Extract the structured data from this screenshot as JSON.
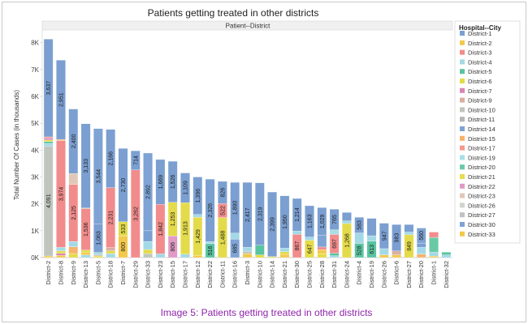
{
  "caption": "Image 5: Patients getting treated in other districts",
  "chart_data": {
    "type": "bar",
    "stacked": true,
    "title": "Patients getting treated in other districts",
    "column_header": "Patient--District",
    "ylabel": "Total Number Of Cases (in thousands)",
    "xlabel": "",
    "ylim": [
      0,
      8200
    ],
    "yticks": [
      0,
      1000,
      2000,
      3000,
      4000,
      5000,
      6000,
      7000,
      8000
    ],
    "ytick_labels": [
      "0K",
      "1K",
      "2K",
      "3K",
      "4K",
      "5K",
      "6K",
      "7K",
      "8K"
    ],
    "grid": false,
    "legend_position": "right",
    "legend_title": "Hospital--City",
    "legend": [
      {
        "name": "District-1",
        "color": "#7b9fd1"
      },
      {
        "name": "District-2",
        "color": "#f2c94c"
      },
      {
        "name": "District-3",
        "color": "#f28c8c"
      },
      {
        "name": "District-4",
        "color": "#a3d9e6"
      },
      {
        "name": "District-5",
        "color": "#59c4a0"
      },
      {
        "name": "District-6",
        "color": "#e4db4a"
      },
      {
        "name": "District-7",
        "color": "#d985b5"
      },
      {
        "name": "District-9",
        "color": "#d9b0a0"
      },
      {
        "name": "District-10",
        "color": "#c0c6bd"
      },
      {
        "name": "District-11",
        "color": "#b5b5b5"
      },
      {
        "name": "District-14",
        "color": "#7ea3d4"
      },
      {
        "name": "District-15",
        "color": "#f7b36b"
      },
      {
        "name": "District-17",
        "color": "#f59a8c"
      },
      {
        "name": "District-19",
        "color": "#a8dfe6"
      },
      {
        "name": "District-20",
        "color": "#69c9a6"
      },
      {
        "name": "District-21",
        "color": "#e6dd50"
      },
      {
        "name": "District-22",
        "color": "#e09ac5"
      },
      {
        "name": "District-23",
        "color": "#e0c8b8"
      },
      {
        "name": "District-26",
        "color": "#cfd4cc"
      },
      {
        "name": "District-27",
        "color": "#c2c2c2"
      },
      {
        "name": "District-30",
        "color": "#7ea3d4"
      },
      {
        "name": "District-33",
        "color": "#f2c94c"
      }
    ],
    "categories": [
      {
        "name": "District-2",
        "total": 8130,
        "segments": [
          {
            "color": "#f2c94c",
            "value": 60
          },
          {
            "color": "#c0c6bd",
            "value": 4091,
            "label": "4,091"
          },
          {
            "color": "#a3d9e6",
            "value": 100
          },
          {
            "color": "#59c4a0",
            "value": 70
          },
          {
            "color": "#e4db4a",
            "value": 60
          },
          {
            "color": "#d985b5",
            "value": 62
          },
          {
            "color": "#f28c8c",
            "value": 50
          },
          {
            "color": "#7b9fd1",
            "value": 3637,
            "label": "3,637"
          }
        ]
      },
      {
        "name": "District-8",
        "total": 7350,
        "segments": [
          {
            "color": "#f2c94c",
            "value": 80
          },
          {
            "color": "#d985b5",
            "value": 80
          },
          {
            "color": "#e4db4a",
            "value": 90
          },
          {
            "color": "#a3d9e6",
            "value": 130
          },
          {
            "color": "#f28c8c",
            "value": 3974,
            "label": "3,974"
          },
          {
            "color": "#f7b36b",
            "value": 45
          },
          {
            "color": "#7b9fd1",
            "value": 2951,
            "label": "2,951"
          }
        ]
      },
      {
        "name": "District-9",
        "total": 5530,
        "segments": [
          {
            "color": "#e4db4a",
            "value": 150
          },
          {
            "color": "#f7b36b",
            "value": 250
          },
          {
            "color": "#a3d9e6",
            "value": 200
          },
          {
            "color": "#f28c8c",
            "value": 2125,
            "label": "2,125"
          },
          {
            "color": "#e0c8b8",
            "value": 405
          },
          {
            "color": "#7b9fd1",
            "value": 2400,
            "label": "2,400"
          }
        ]
      },
      {
        "name": "District-13",
        "total": 4980,
        "segments": [
          {
            "color": "#a3d9e6",
            "value": 100
          },
          {
            "color": "#f2c94c",
            "value": 90
          },
          {
            "color": "#e4db4a",
            "value": 90
          },
          {
            "color": "#f28c8c",
            "value": 1536,
            "label": "1,536"
          },
          {
            "color": "#d9b0a0",
            "value": 31
          },
          {
            "color": "#7b9fd1",
            "value": 3133,
            "label": "3,133"
          }
        ]
      },
      {
        "name": "District-5",
        "total": 4800,
        "segments": [
          {
            "color": "#e4db4a",
            "value": 60
          },
          {
            "color": "#c0c6bd",
            "value": 60
          },
          {
            "color": "#a3d9e6",
            "value": 73
          },
          {
            "color": "#7b9fd1",
            "value": 1063,
            "label": "1,063"
          },
          {
            "color": "#f2c94c",
            "value": 0
          },
          {
            "color": "#7ea3d4",
            "value": 3544,
            "label": "3,544"
          }
        ]
      },
      {
        "name": "District-18",
        "total": 4770,
        "segments": [
          {
            "color": "#a3d9e6",
            "value": 150
          },
          {
            "color": "#e4db4a",
            "value": 100
          },
          {
            "color": "#d9b0a0",
            "value": 123
          },
          {
            "color": "#f28c8c",
            "value": 2231,
            "label": "2,231"
          },
          {
            "color": "#7b9fd1",
            "value": 2166,
            "label": "2,166"
          }
        ]
      },
      {
        "name": "District-7",
        "total": 4063,
        "segments": [
          {
            "color": "#f2c94c",
            "value": 800,
            "label": "800"
          },
          {
            "color": "#e4db4a",
            "value": 533,
            "label": "533"
          },
          {
            "color": "#7b9fd1",
            "value": 2730,
            "label": "2,730"
          }
        ]
      },
      {
        "name": "District-29",
        "total": 3976,
        "segments": [
          {
            "color": "#f28c8c",
            "value": 3262,
            "label": "3,262"
          },
          {
            "color": "#7b9fd1",
            "value": 714,
            "label": "714"
          }
        ]
      },
      {
        "name": "District-33",
        "total": 3890,
        "segments": [
          {
            "color": "#c0c6bd",
            "value": 150
          },
          {
            "color": "#e4db4a",
            "value": 150
          },
          {
            "color": "#a3d9e6",
            "value": 300
          },
          {
            "color": "#7b9fd1",
            "value": 398
          },
          {
            "color": "#7ea3d4",
            "value": 2892,
            "label": "2,892"
          }
        ]
      },
      {
        "name": "District-23",
        "total": 3650,
        "segments": [
          {
            "color": "#a3d9e6",
            "value": 139
          },
          {
            "color": "#f28c8c",
            "value": 1842,
            "label": "1,842"
          },
          {
            "color": "#7b9fd1",
            "value": 1669,
            "label": "1,669"
          }
        ]
      },
      {
        "name": "District-15",
        "total": 3585,
        "segments": [
          {
            "color": "#e09ac5",
            "value": 806,
            "label": "806"
          },
          {
            "color": "#e4db4a",
            "value": 1253,
            "label": "1,253"
          },
          {
            "color": "#7b9fd1",
            "value": 1526,
            "label": "1,526"
          }
        ]
      },
      {
        "name": "District-17",
        "total": 3150,
        "segments": [
          {
            "color": "#a3d9e6",
            "value": 128
          },
          {
            "color": "#e4db4a",
            "value": 1913,
            "label": "1,913"
          },
          {
            "color": "#7b9fd1",
            "value": 1109,
            "label": "1,109"
          }
        ]
      },
      {
        "name": "District-12",
        "total": 3000,
        "segments": [
          {
            "color": "#f2c94c",
            "value": 75
          },
          {
            "color": "#e4db4a",
            "value": 1429,
            "label": "1,429"
          },
          {
            "color": "#a3d9e6",
            "value": 100
          },
          {
            "color": "#7b9fd1",
            "value": 1396,
            "label": "1,396"
          }
        ]
      },
      {
        "name": "District-22",
        "total": 2920,
        "segments": [
          {
            "color": "#59c4a0",
            "value": 516,
            "label": "516"
          },
          {
            "color": "#a3d9e6",
            "value": 78
          },
          {
            "color": "#7b9fd1",
            "value": 2326,
            "label": "2,326"
          }
        ]
      },
      {
        "name": "District-11",
        "total": 2836,
        "segments": [
          {
            "color": "#e4db4a",
            "value": 1488,
            "label": "1,488"
          },
          {
            "color": "#f28c8c",
            "value": 522,
            "label": "522"
          },
          {
            "color": "#7b9fd1",
            "value": 826,
            "label": "826"
          }
        ]
      },
      {
        "name": "District-16",
        "total": 2800,
        "segments": [
          {
            "color": "#7ea3d4",
            "value": 685,
            "label": "685"
          },
          {
            "color": "#a3d9e6",
            "value": 225
          },
          {
            "color": "#7b9fd1",
            "value": 1890,
            "label": "1,890"
          }
        ]
      },
      {
        "name": "District-3",
        "total": 2800,
        "segments": [
          {
            "color": "#f2c94c",
            "value": 140
          },
          {
            "color": "#c0c6bd",
            "value": 100
          },
          {
            "color": "#a3d9e6",
            "value": 143
          },
          {
            "color": "#7b9fd1",
            "value": 2417,
            "label": "2,417"
          }
        ]
      },
      {
        "name": "District-10",
        "total": 2780,
        "segments": [
          {
            "color": "#e4db4a",
            "value": 100
          },
          {
            "color": "#59c4a0",
            "value": 361
          },
          {
            "color": "#7b9fd1",
            "value": 2319,
            "label": "2,319"
          }
        ]
      },
      {
        "name": "District-14",
        "total": 2440,
        "segments": [
          {
            "color": "#e4db4a",
            "value": 41
          },
          {
            "color": "#7b9fd1",
            "value": 2399,
            "label": "2,399"
          }
        ]
      },
      {
        "name": "District-21",
        "total": 2300,
        "segments": [
          {
            "color": "#f2c94c",
            "value": 120
          },
          {
            "color": "#e4db4a",
            "value": 100
          },
          {
            "color": "#a3d9e6",
            "value": 130
          },
          {
            "color": "#7b9fd1",
            "value": 1950,
            "label": "1,950"
          }
        ]
      },
      {
        "name": "District-30",
        "total": 2200,
        "segments": [
          {
            "color": "#f28c8c",
            "value": 867,
            "label": "867"
          },
          {
            "color": "#a3d9e6",
            "value": 119
          },
          {
            "color": "#7b9fd1",
            "value": 1214,
            "label": "1,214"
          }
        ]
      },
      {
        "name": "District-25",
        "total": 1930,
        "segments": [
          {
            "color": "#e4db4a",
            "value": 647,
            "label": "647"
          },
          {
            "color": "#a3d9e6",
            "value": 120
          },
          {
            "color": "#7b9fd1",
            "value": 1163,
            "label": "1,163"
          }
        ]
      },
      {
        "name": "District-28",
        "total": 1860,
        "segments": [
          {
            "color": "#e4db4a",
            "value": 150
          },
          {
            "color": "#f2c94c",
            "value": 144
          },
          {
            "color": "#f28c8c",
            "value": 100
          },
          {
            "color": "#7ea3d4",
            "value": 437
          },
          {
            "color": "#7b9fd1",
            "value": 1029,
            "label": "1,029"
          }
        ]
      },
      {
        "name": "District-31",
        "total": 1800,
        "segments": [
          {
            "color": "#a3d9e6",
            "value": 70
          },
          {
            "color": "#59c4a0",
            "value": 95
          },
          {
            "color": "#f28c8c",
            "value": 697,
            "label": "697"
          },
          {
            "color": "#a8dfe6",
            "value": 173
          },
          {
            "color": "#7b9fd1",
            "value": 765,
            "label": "765"
          }
        ]
      },
      {
        "name": "District-24",
        "total": 1680,
        "segments": [
          {
            "color": "#e4db4a",
            "value": 1268,
            "label": "1,268"
          },
          {
            "color": "#a3d9e6",
            "value": 100
          },
          {
            "color": "#7b9fd1",
            "value": 312
          }
        ]
      },
      {
        "name": "District-4",
        "total": 1500,
        "segments": [
          {
            "color": "#59c4a0",
            "value": 528,
            "label": "528"
          },
          {
            "color": "#a3d9e6",
            "value": 389
          },
          {
            "color": "#7b9fd1",
            "value": 583,
            "label": "583"
          }
        ]
      },
      {
        "name": "District-19",
        "total": 1460,
        "segments": [
          {
            "color": "#59c4a0",
            "value": 613,
            "label": "613"
          },
          {
            "color": "#a3d9e6",
            "value": 200
          },
          {
            "color": "#7b9fd1",
            "value": 647
          }
        ]
      },
      {
        "name": "District-26",
        "total": 1280,
        "segments": [
          {
            "color": "#f2c94c",
            "value": 100
          },
          {
            "color": "#a3d9e6",
            "value": 233
          },
          {
            "color": "#7b9fd1",
            "value": 947,
            "label": "947"
          }
        ]
      },
      {
        "name": "District-6",
        "total": 1230,
        "segments": [
          {
            "color": "#f2c94c",
            "value": 100
          },
          {
            "color": "#d9b0a0",
            "value": 147
          },
          {
            "color": "#7b9fd1",
            "value": 983,
            "label": "983"
          }
        ]
      },
      {
        "name": "District-27",
        "total": 1230,
        "segments": [
          {
            "color": "#e4db4a",
            "value": 849,
            "label": "849"
          },
          {
            "color": "#a3d9e6",
            "value": 100
          },
          {
            "color": "#7b9fd1",
            "value": 281
          }
        ]
      },
      {
        "name": "District-20",
        "total": 1100,
        "segments": [
          {
            "color": "#f7b36b",
            "value": 130
          },
          {
            "color": "#a3d9e6",
            "value": 250
          },
          {
            "color": "#7b9fd1",
            "value": 160
          },
          {
            "color": "#7ea3d4",
            "value": 560,
            "label": "560"
          }
        ]
      },
      {
        "name": "District-1",
        "total": 950,
        "segments": [
          {
            "color": "#f2c94c",
            "value": 50
          },
          {
            "color": "#a3d9e6",
            "value": 150
          },
          {
            "color": "#69c9a6",
            "value": 550
          },
          {
            "color": "#f28c8c",
            "value": 200
          }
        ]
      },
      {
        "name": "District-32",
        "total": 200,
        "segments": [
          {
            "color": "#a3d9e6",
            "value": 100
          },
          {
            "color": "#59c4a0",
            "value": 100
          }
        ]
      }
    ]
  }
}
